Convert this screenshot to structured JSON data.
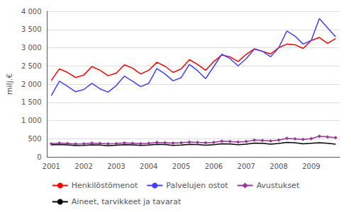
{
  "chart_data": {
    "type": "line",
    "ylabel": "milj.€",
    "categories": [
      "2001",
      null,
      null,
      null,
      "2002",
      null,
      null,
      null,
      "2003",
      null,
      null,
      null,
      "2004",
      null,
      null,
      null,
      "2005",
      null,
      null,
      null,
      "2006",
      null,
      null,
      null,
      "2007",
      null,
      null,
      null,
      "2008",
      null,
      null,
      null,
      "2009",
      null,
      null,
      null
    ],
    "series": [
      {
        "name": "Henkilöstömenot",
        "color": "#ff0000",
        "values": [
          2100,
          2420,
          2320,
          2180,
          2250,
          2480,
          2380,
          2230,
          2300,
          2530,
          2440,
          2280,
          2380,
          2600,
          2490,
          2320,
          2420,
          2670,
          2540,
          2380,
          2620,
          2800,
          2750,
          2620,
          2820,
          2970,
          2900,
          2830,
          3000,
          3100,
          3080,
          2980,
          3200,
          3280,
          3120,
          3250
        ]
      },
      {
        "name": "Palvelujen ostot",
        "color": "#4040ff",
        "values": [
          1680,
          2080,
          1940,
          1790,
          1850,
          2020,
          1870,
          1780,
          1960,
          2220,
          2080,
          1930,
          2020,
          2430,
          2280,
          2090,
          2180,
          2540,
          2370,
          2150,
          2480,
          2820,
          2700,
          2500,
          2700,
          2960,
          2900,
          2750,
          3000,
          3460,
          3320,
          3100,
          3200,
          3800,
          3550,
          3300
        ]
      },
      {
        "name": "Avustukset",
        "color": "#993399",
        "marker": "diamond",
        "values": [
          360,
          380,
          370,
          355,
          360,
          380,
          370,
          360,
          365,
          385,
          375,
          365,
          375,
          400,
          390,
          380,
          390,
          410,
          400,
          390,
          400,
          430,
          420,
          410,
          420,
          460,
          450,
          435,
          460,
          510,
          495,
          480,
          500,
          570,
          550,
          530
        ]
      },
      {
        "name": "Aineet, tarvikkeet ja tavarat",
        "color": "#000000",
        "values": [
          330,
          340,
          330,
          310,
          315,
          330,
          325,
          305,
          320,
          335,
          330,
          315,
          325,
          345,
          340,
          315,
          325,
          345,
          340,
          320,
          335,
          360,
          355,
          335,
          350,
          380,
          375,
          350,
          370,
          400,
          390,
          360,
          375,
          390,
          375,
          350
        ]
      }
    ],
    "ylim": [
      0,
      4000
    ],
    "yticks": [
      0,
      500,
      {
        "value": 1000,
        "label": "1 000"
      },
      {
        "value": 1500,
        "label": "1 500"
      },
      {
        "value": 2000,
        "label": "2 000"
      },
      {
        "value": 2500,
        "label": "2 500"
      },
      {
        "value": 3000,
        "label": "3 000"
      },
      {
        "value": 3500,
        "label": "3 500"
      },
      {
        "value": 4000,
        "label": "4 000"
      }
    ],
    "grid": true,
    "legend": "bottom"
  }
}
